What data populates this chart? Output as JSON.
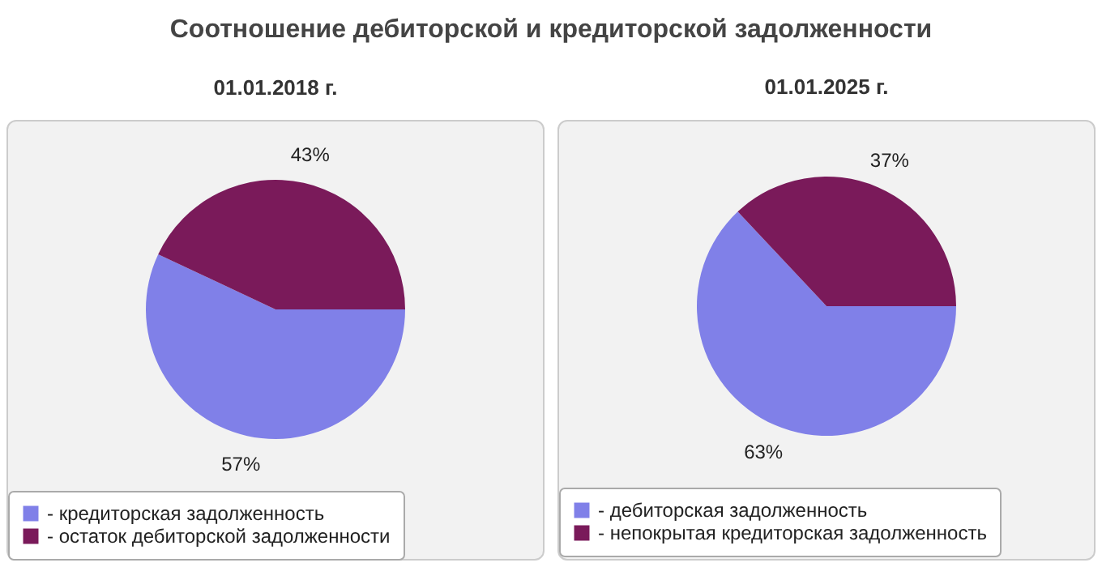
{
  "chart_data": [
    {
      "type": "pie",
      "title": "Соотношение дебиторской и кредиторской задолженности",
      "subtitle": "01.01.2018 г.",
      "categories": [
        "- кредиторская задолженность",
        "- остаток дебиторской задолженности"
      ],
      "values": [
        57,
        43
      ],
      "colors": [
        "#8080e8",
        "#7a1a5a"
      ],
      "value_labels": [
        "57%",
        "43%"
      ],
      "legend": "bottom"
    },
    {
      "type": "pie",
      "subtitle": "01.01.2025 г.",
      "categories": [
        "- дебиторская задолженность",
        "- непокрытая кредиторская задолженность"
      ],
      "values": [
        63,
        37
      ],
      "colors": [
        "#8080e8",
        "#7a1a5a"
      ],
      "value_labels": [
        "63%",
        "37%"
      ],
      "legend": "bottom"
    }
  ]
}
